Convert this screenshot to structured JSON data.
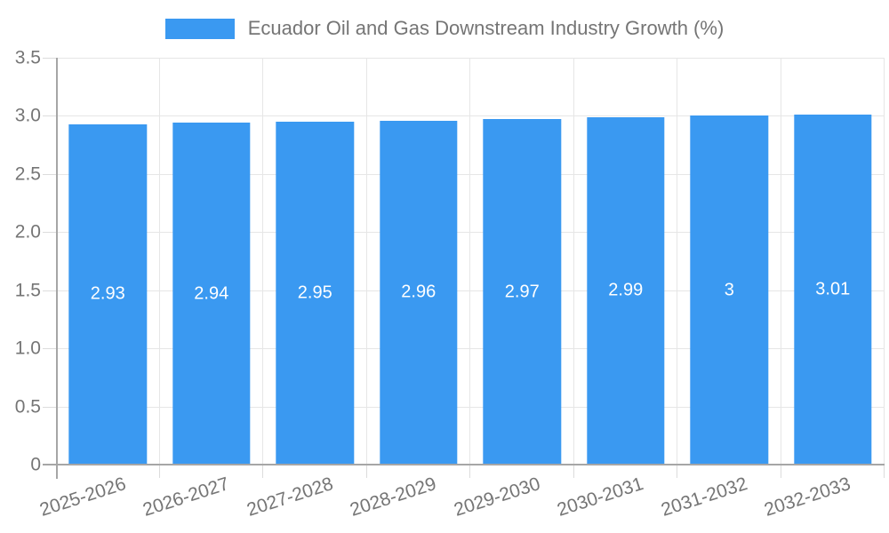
{
  "legend": {
    "label": "Ecuador Oil and Gas Downstream Industry Growth (%)"
  },
  "colors": {
    "bar": "#3A99F1",
    "axis_text": "#757575",
    "grid": "#E6E6E6",
    "axis_line": "#A6A6A6",
    "value_label": "#FFFFFF",
    "background": "#FFFFFF"
  },
  "chart_data": {
    "type": "bar",
    "title": "Ecuador Oil and Gas Downstream Industry Growth (%)",
    "xlabel": "",
    "ylabel": "",
    "categories": [
      "2025-2026",
      "2026-2027",
      "2027-2028",
      "2028-2029",
      "2029-2030",
      "2030-2031",
      "2031-2032",
      "2032-2033"
    ],
    "values": [
      2.93,
      2.94,
      2.95,
      2.96,
      2.97,
      2.99,
      3,
      3.01
    ],
    "value_labels": [
      "2.93",
      "2.94",
      "2.95",
      "2.96",
      "2.97",
      "2.99",
      "3",
      "3.01"
    ],
    "ylim": [
      0,
      3.5
    ],
    "ytick_step": 0.5,
    "ytick_labels": [
      "0",
      "0.5",
      "1.0",
      "1.5",
      "2.0",
      "2.5",
      "3.0",
      "3.5"
    ],
    "grid": true,
    "legend_position": "top",
    "bar_label_position": "center"
  }
}
